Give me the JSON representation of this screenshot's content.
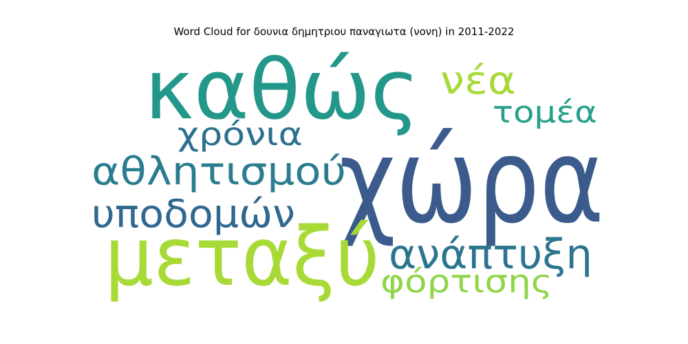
{
  "chart_data": {
    "type": "wordcloud",
    "title": "Word Cloud for δουνια δημητριου παναγιωτα (νονη) in 2011-2022",
    "words": [
      {
        "text": "χώρα",
        "color": "#3b5b8c"
      },
      {
        "text": "καθώς",
        "color": "#23988a"
      },
      {
        "text": "μεταξύ",
        "color": "#a8da37"
      },
      {
        "text": "νέα",
        "color": "#a8da37"
      },
      {
        "text": "τομέα",
        "color": "#25a089"
      },
      {
        "text": "χρόνια",
        "color": "#2c708e"
      },
      {
        "text": "αθλητισμού",
        "color": "#2a7c8e"
      },
      {
        "text": "υποδομών",
        "color": "#30688e"
      },
      {
        "text": "ανάπτυξη",
        "color": "#2c758e"
      },
      {
        "text": "φόρτισης",
        "color": "#8ed548"
      }
    ]
  }
}
